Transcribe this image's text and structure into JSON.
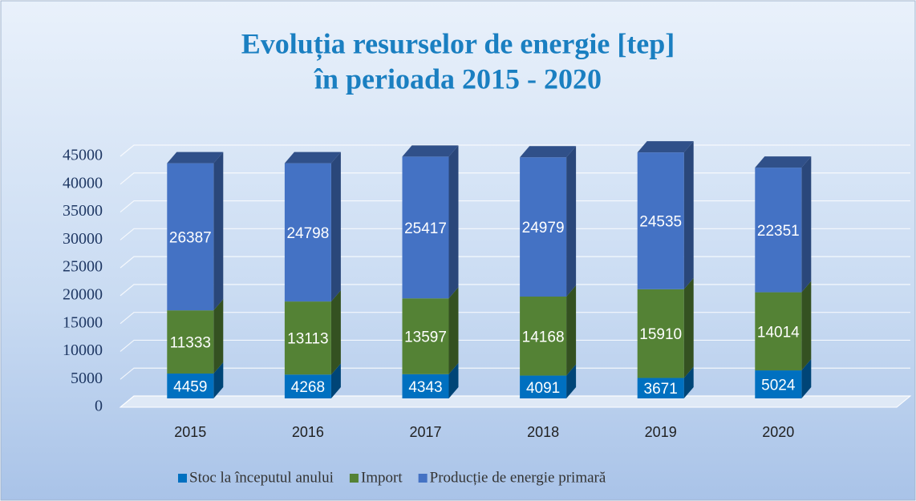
{
  "chart_data": {
    "type": "bar3d_stacked",
    "title": [
      "Evoluția resurselor de energie [tep]",
      "în perioada 2015 - 2020"
    ],
    "categories": [
      "2015",
      "2016",
      "2017",
      "2018",
      "2019",
      "2020"
    ],
    "series": [
      {
        "name": "Stoc la începutul anului",
        "color": "#0070c0",
        "values": [
          4459,
          4268,
          4343,
          4091,
          3671,
          5024
        ]
      },
      {
        "name": "Import",
        "color": "#548235",
        "values": [
          11333,
          13113,
          13597,
          14168,
          15910,
          14014
        ]
      },
      {
        "name": "Producție de energie primară",
        "color": "#4472c4",
        "values": [
          26387,
          24798,
          25417,
          24979,
          24535,
          22351
        ]
      }
    ],
    "ylim": [
      0,
      45000
    ],
    "yticks": [
      0,
      5000,
      10000,
      15000,
      20000,
      25000,
      30000,
      35000,
      40000,
      45000
    ],
    "grid": true,
    "legend": "bottom"
  }
}
